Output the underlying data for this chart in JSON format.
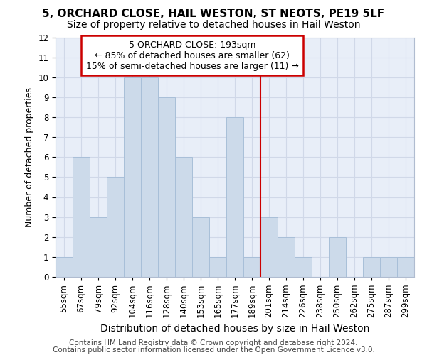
{
  "title1": "5, ORCHARD CLOSE, HAIL WESTON, ST NEOTS, PE19 5LF",
  "title2": "Size of property relative to detached houses in Hail Weston",
  "xlabel": "Distribution of detached houses by size in Hail Weston",
  "ylabel": "Number of detached properties",
  "categories": [
    "55sqm",
    "67sqm",
    "79sqm",
    "92sqm",
    "104sqm",
    "116sqm",
    "128sqm",
    "140sqm",
    "153sqm",
    "165sqm",
    "177sqm",
    "189sqm",
    "201sqm",
    "214sqm",
    "226sqm",
    "238sqm",
    "250sqm",
    "262sqm",
    "275sqm",
    "287sqm",
    "299sqm"
  ],
  "values": [
    1,
    6,
    3,
    5,
    10,
    10,
    9,
    6,
    3,
    1,
    8,
    1,
    3,
    2,
    1,
    0,
    2,
    0,
    1,
    1,
    1
  ],
  "bar_color": "#ccdaea",
  "bar_edge_color": "#a8bfd8",
  "vline_x_idx": 11.5,
  "vline_color": "#cc0000",
  "annotation_line1": "5 ORCHARD CLOSE: 193sqm",
  "annotation_line2": "← 85% of detached houses are smaller (62)",
  "annotation_line3": "15% of semi-detached houses are larger (11) →",
  "annotation_box_color": "#cc0000",
  "ylim": [
    0,
    12
  ],
  "yticks": [
    0,
    1,
    2,
    3,
    4,
    5,
    6,
    7,
    8,
    9,
    10,
    11,
    12
  ],
  "footer1": "Contains HM Land Registry data © Crown copyright and database right 2024.",
  "footer2": "Contains public sector information licensed under the Open Government Licence v3.0.",
  "grid_color": "#d0d8e8",
  "bg_color": "#e8eef8",
  "title1_fontsize": 11,
  "title2_fontsize": 10,
  "ylabel_fontsize": 9,
  "xlabel_fontsize": 10,
  "tick_fontsize": 8.5,
  "footer_fontsize": 7.5,
  "ann_fontsize": 9
}
